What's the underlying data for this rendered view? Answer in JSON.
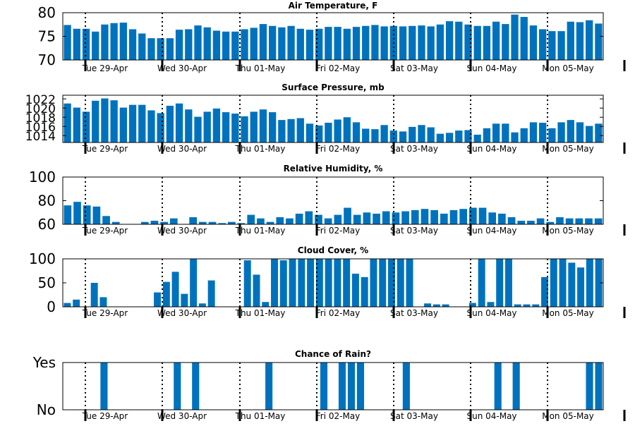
{
  "colors": {
    "bar": "#0072bd",
    "axis": "#000000",
    "dotted": "#000000"
  },
  "x_axis": {
    "day_labels": [
      "Tue 29-Apr",
      "Wed 30-Apr",
      "Thu 01-May",
      "Fri 02-May",
      "Sat 03-May",
      "Sun 04-May",
      "Mon 05-May"
    ]
  },
  "chart_data": [
    {
      "type": "bar",
      "title": "Air Temperature, F",
      "ylim": [
        70,
        80
      ],
      "yticks": [
        "70",
        "75",
        "80"
      ],
      "ytick_values": [
        70,
        75,
        80
      ],
      "values": [
        77.4,
        76.6,
        76.6,
        76,
        77.5,
        77.8,
        77.9,
        76.5,
        75.6,
        74.6,
        74.6,
        74.6,
        76.4,
        76.5,
        77.3,
        76.9,
        76.2,
        76,
        76,
        76.5,
        76.8,
        77.6,
        77.2,
        76.9,
        77.2,
        76.6,
        76.4,
        76.6,
        77,
        77,
        76.6,
        77,
        77.2,
        77.4,
        77.1,
        77.2,
        77.1,
        77.2,
        77.3,
        77.1,
        77.5,
        78.2,
        78.1,
        77.5,
        77.2,
        77.2,
        78.1,
        77.6,
        79.6,
        79.1,
        77.3,
        76.5,
        76.1,
        76.1,
        78.1,
        78,
        78.4,
        77.7
      ]
    },
    {
      "type": "bar",
      "title": "Surface Pressure, mb",
      "ylim": [
        1012.5,
        1022.8
      ],
      "yticks": [
        "1014",
        "1016",
        "1018",
        "1020",
        "1022"
      ],
      "ytick_values": [
        1014,
        1016,
        1018,
        1020,
        1022
      ],
      "values": [
        1021,
        1020.1,
        1019.2,
        1021.6,
        1022.1,
        1021.7,
        1020.1,
        1020.7,
        1020.7,
        1019.5,
        1018.9,
        1020.5,
        1021,
        1019.7,
        1018.1,
        1019.2,
        1019.9,
        1019.1,
        1018.8,
        1018.2,
        1019.2,
        1019.7,
        1019.1,
        1017.4,
        1017.6,
        1017.8,
        1016.6,
        1016.2,
        1016.8,
        1017.5,
        1018,
        1016.9,
        1015.5,
        1015.4,
        1016.3,
        1015.1,
        1014.9,
        1015.9,
        1016.3,
        1015.8,
        1014.4,
        1014.6,
        1015.1,
        1015.2,
        1014.2,
        1015.6,
        1016.6,
        1016.6,
        1014.7,
        1015.6,
        1016.9,
        1016.8,
        1015.6,
        1016.9,
        1017.4,
        1016.9,
        1016.1,
        1016.6
      ]
    },
    {
      "type": "bar",
      "title": "Relative Humidity, %",
      "ylim": [
        60,
        100
      ],
      "yticks": [
        "60",
        "80",
        "100"
      ],
      "ytick_values": [
        60,
        80,
        100
      ],
      "values": [
        76,
        79,
        76,
        75,
        67,
        62,
        59,
        58,
        62,
        63,
        62,
        65,
        59,
        66,
        62,
        62,
        61,
        62,
        61,
        68,
        65,
        62,
        66,
        65,
        69,
        71,
        68,
        65,
        68,
        74,
        68,
        70,
        69,
        71,
        70,
        71,
        72,
        73,
        72,
        69,
        72,
        73,
        74,
        74,
        70,
        69,
        66,
        63,
        63,
        65,
        62,
        66,
        65,
        65,
        65,
        65
      ]
    },
    {
      "type": "bar",
      "title": "Cloud Cover, %",
      "ylim": [
        0,
        100
      ],
      "yticks": [
        "0",
        "50",
        "100"
      ],
      "ytick_values": [
        0,
        50,
        100
      ],
      "values": [
        8,
        15,
        0,
        50,
        20,
        0,
        0,
        0,
        0,
        0,
        30,
        52,
        73,
        27,
        100,
        7,
        55,
        0,
        0,
        0,
        97,
        67,
        10,
        100,
        97,
        100,
        100,
        100,
        100,
        100,
        100,
        100,
        69,
        62,
        100,
        100,
        100,
        100,
        100,
        0,
        7,
        5,
        5,
        0,
        0,
        8,
        100,
        10,
        100,
        100,
        5,
        5,
        5,
        62,
        100,
        100,
        92,
        82,
        100,
        100
      ]
    },
    {
      "type": "bar",
      "title": "Chance of Rain?",
      "ylim": [
        0,
        1
      ],
      "yticks": [
        "No",
        "Yes"
      ],
      "ytick_values": [
        0,
        1
      ],
      "values": [
        0,
        0,
        0,
        0,
        1,
        0,
        0,
        0,
        0,
        0,
        0,
        0,
        1,
        0,
        1,
        0,
        0,
        0,
        0,
        0,
        0,
        0,
        1,
        0,
        0,
        0,
        0,
        0,
        1,
        0,
        1,
        1,
        1,
        0,
        0,
        0,
        0,
        1,
        0,
        0,
        0,
        0,
        0,
        0,
        0,
        0,
        0,
        1,
        0,
        1,
        0,
        0,
        0,
        0,
        0,
        0,
        0,
        1,
        1
      ]
    }
  ]
}
